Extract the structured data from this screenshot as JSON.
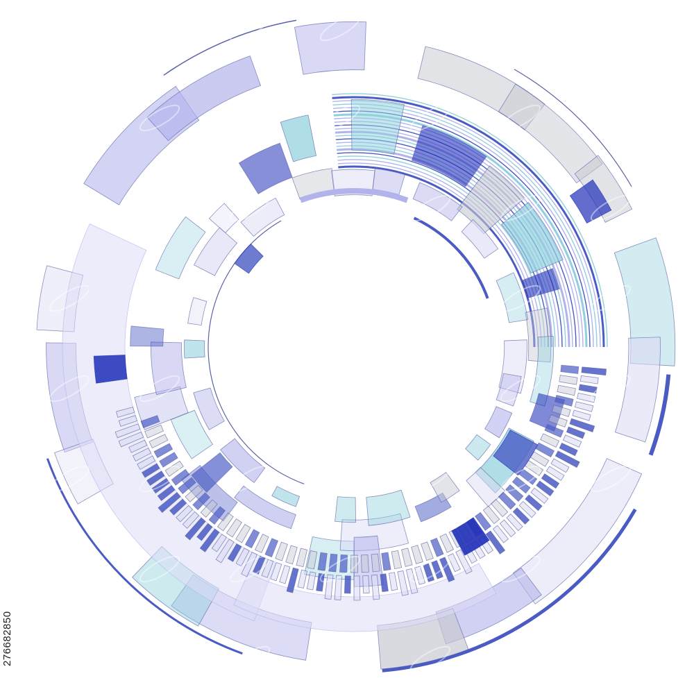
{
  "image": {
    "stock_id": "276682850",
    "palette": {
      "background": "#ffffff",
      "navy": "#1f2fb8",
      "royal": "#4a5bc4",
      "periwinkle": "#b3b3ec",
      "lavender": "#dcdcf5",
      "cyan": "#8fd0dc",
      "grey": "#c6c8d0",
      "outline": "#5a62a8"
    },
    "motif": "concentric-hud-ring"
  }
}
